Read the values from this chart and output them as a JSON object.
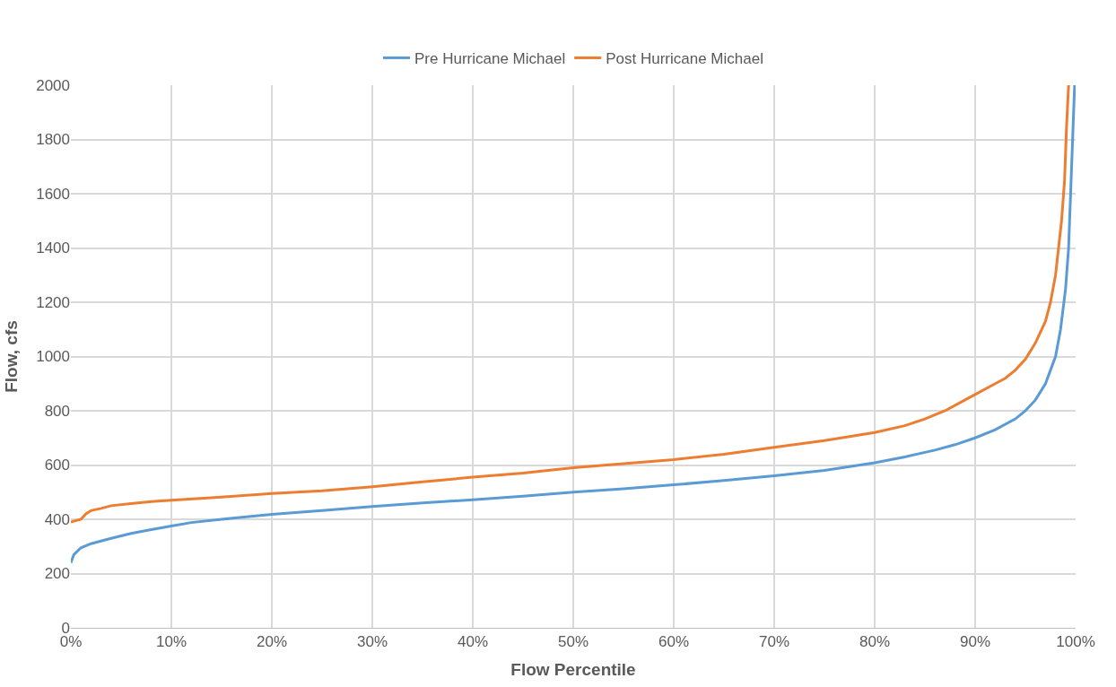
{
  "chart_data": {
    "type": "line",
    "xlabel": "Flow Percentile",
    "ylabel": "Flow, cfs",
    "xlim": [
      0,
      100
    ],
    "xticks": [
      {
        "value": 0,
        "label": "0%"
      },
      {
        "value": 10,
        "label": "10%"
      },
      {
        "value": 20,
        "label": "20%"
      },
      {
        "value": 30,
        "label": "30%"
      },
      {
        "value": 40,
        "label": "40%"
      },
      {
        "value": 50,
        "label": "50%"
      },
      {
        "value": 60,
        "label": "60%"
      },
      {
        "value": 70,
        "label": "70%"
      },
      {
        "value": 80,
        "label": "80%"
      },
      {
        "value": 90,
        "label": "90%"
      },
      {
        "value": 100,
        "label": "100%"
      }
    ],
    "ylim": [
      0,
      2000
    ],
    "yticks": [
      0,
      200,
      400,
      600,
      800,
      1000,
      1200,
      1400,
      1600,
      1800,
      2000
    ],
    "grid": true,
    "legend": "top",
    "marker": "none",
    "line_style": "solid",
    "series": [
      {
        "name": "Pre Hurricane Michael",
        "color": "#5b9bd5",
        "x": [
          0,
          0.3,
          1,
          2,
          4,
          6,
          8,
          10,
          12,
          15,
          20,
          25,
          30,
          35,
          40,
          45,
          50,
          55,
          60,
          65,
          70,
          75,
          80,
          83,
          86,
          88,
          90,
          92,
          94,
          95,
          96,
          97,
          97.5,
          98,
          98.5,
          99,
          99.3,
          99.6,
          99.9
        ],
        "values": [
          240,
          270,
          295,
          310,
          330,
          348,
          362,
          375,
          388,
          400,
          418,
          432,
          447,
          460,
          472,
          485,
          500,
          512,
          527,
          543,
          560,
          580,
          608,
          630,
          655,
          675,
          700,
          730,
          770,
          800,
          840,
          900,
          950,
          1000,
          1100,
          1250,
          1400,
          1700,
          2000
        ]
      },
      {
        "name": "Post Hurricane Michael",
        "color": "#ed7d31",
        "x": [
          0,
          1,
          1.5,
          2,
          3,
          4,
          6,
          8,
          10,
          15,
          20,
          25,
          30,
          35,
          40,
          45,
          50,
          55,
          60,
          65,
          70,
          75,
          80,
          83,
          85,
          87,
          89,
          90,
          92,
          93,
          94,
          95,
          96,
          97,
          97.5,
          98,
          98.3,
          98.6,
          98.9,
          99.1,
          99.3
        ],
        "values": [
          390,
          400,
          420,
          432,
          440,
          450,
          458,
          465,
          470,
          482,
          495,
          505,
          520,
          538,
          555,
          570,
          590,
          605,
          620,
          640,
          665,
          690,
          720,
          745,
          770,
          800,
          840,
          860,
          900,
          920,
          950,
          990,
          1050,
          1130,
          1200,
          1300,
          1400,
          1500,
          1650,
          1850,
          2000
        ]
      }
    ]
  }
}
